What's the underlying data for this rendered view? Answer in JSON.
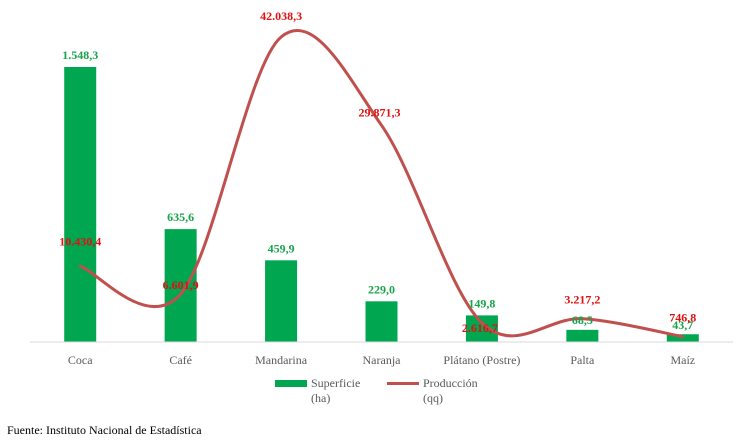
{
  "chart_data": {
    "type": "bar",
    "categories": [
      "Coca",
      "Café",
      "Mandarina",
      "Naranja",
      "Plátano (Postre)",
      "Palta",
      "Maíz"
    ],
    "series": [
      {
        "name": "Superficie (ha)",
        "type": "bar",
        "values": [
          1548.3,
          635.6,
          459.9,
          229.0,
          149.8,
          68.5,
          43.7
        ],
        "labels": [
          "1.548,3",
          "635,6",
          "459,9",
          "229,0",
          "149,8",
          "68,5",
          "43,7"
        ],
        "color": "#00a650"
      },
      {
        "name": "Producción (qq)",
        "type": "line",
        "values": [
          10430.4,
          6601.9,
          42038.3,
          29871.3,
          2616.7,
          3217.2,
          746.8
        ],
        "labels": [
          "10.430,4",
          "6.601,9",
          "42.038,3",
          "29.871,3",
          "2.616,7",
          "3.217,2",
          "746,8"
        ],
        "color": "#c0504d"
      }
    ],
    "legend": [
      {
        "line1": "Superficie",
        "line2": "(ha)"
      },
      {
        "line1": "Producción",
        "line2": "(qq)"
      }
    ],
    "legend_position": "bottom",
    "grid": false,
    "label_colors": {
      "bar": "#17a34a",
      "line": "#e01010"
    }
  },
  "footer": {
    "source": "Fuente: Instituto Nacional de Estadística"
  }
}
